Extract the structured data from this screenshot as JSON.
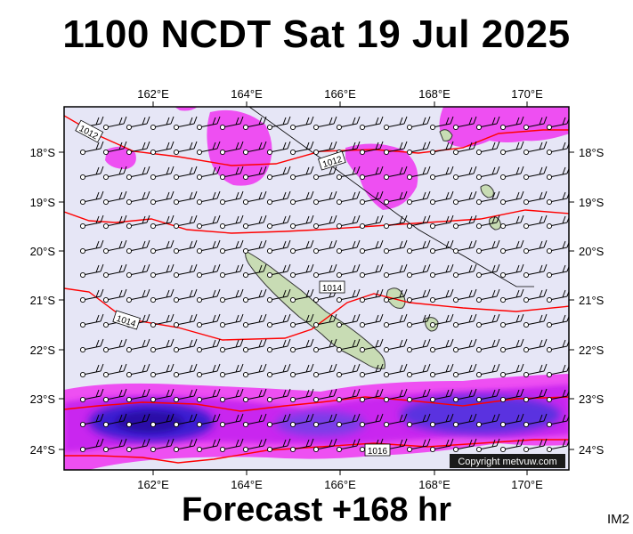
{
  "header": {
    "title": "1100 NCDT Sat 19 Jul 2025"
  },
  "footer": {
    "forecast": "Forecast +168 hr",
    "image_id": "IM2"
  },
  "map": {
    "lon_ticks": [
      "162°E",
      "164°E",
      "166°E",
      "168°E",
      "170°E"
    ],
    "lat_ticks": [
      "18°S",
      "19°S",
      "20°S",
      "21°S",
      "22°S",
      "23°S",
      "24°S"
    ],
    "isobar_labels": [
      "1012",
      "1012",
      "1014",
      "1014",
      "1016"
    ],
    "copyright": "Copyright metvuw.com",
    "colors": {
      "background": "#e6e6f6",
      "rain_light": "#ee4ff2",
      "rain_medium": "#cc22ee",
      "rain_heavy": "#3b1fd0",
      "rain_extreme": "#2a10a8",
      "isobar": "#ff0000",
      "land": "#c8dcb4"
    }
  }
}
